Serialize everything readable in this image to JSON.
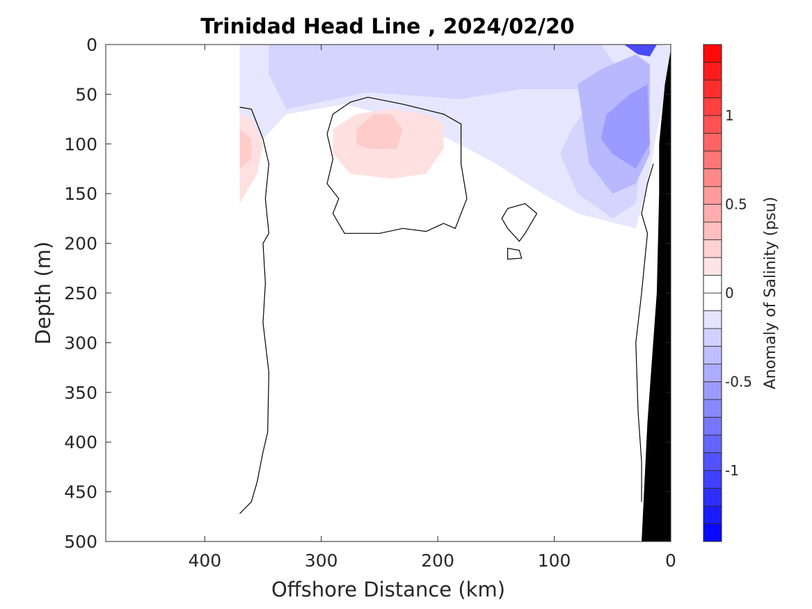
{
  "chart_data": {
    "type": "heatmap",
    "title": "Trinidad Head Line , 2024/02/20",
    "xlabel": "Offshore Distance (km)",
    "ylabel": "Depth (m)",
    "xlim": [
      485,
      0
    ],
    "ylim": [
      0,
      500
    ],
    "x_reversed": true,
    "y_reversed": true,
    "x_ticks": [
      400,
      300,
      200,
      100,
      0
    ],
    "y_ticks": [
      0,
      50,
      100,
      150,
      200,
      250,
      300,
      350,
      400,
      450,
      500
    ],
    "colorbar": {
      "label": "Anomaly of Salinity (psu)",
      "range": [
        -1.4,
        1.4
      ],
      "step": 0.1,
      "ticks": [
        -1,
        -0.5,
        0,
        0.5,
        1
      ],
      "tick_labels": [
        "-1",
        "-0.5",
        "0",
        "0.5",
        "1"
      ],
      "low_color": "#0000ff",
      "zero_color": "#ffffff",
      "high_color": "#ff0000"
    },
    "contour_level": 0,
    "regions": [
      {
        "name": "surface-fresh-band",
        "anomaly": -0.1,
        "color": "#e6e6ff",
        "polygon": [
          [
            370,
            0
          ],
          [
            12,
            0
          ],
          [
            0,
            2
          ],
          [
            5,
            45
          ],
          [
            20,
            140
          ],
          [
            30,
            185
          ],
          [
            80,
            170
          ],
          [
            110,
            150
          ],
          [
            150,
            120
          ],
          [
            190,
            95
          ],
          [
            230,
            75
          ],
          [
            280,
            60
          ],
          [
            330,
            70
          ],
          [
            350,
            95
          ],
          [
            370,
            95
          ]
        ]
      },
      {
        "name": "surface-fresh-core",
        "anomaly": -0.2,
        "color": "#d4d4ff",
        "polygon": [
          [
            345,
            0
          ],
          [
            60,
            0
          ],
          [
            45,
            25
          ],
          [
            70,
            60
          ],
          [
            85,
            85
          ],
          [
            95,
            110
          ],
          [
            80,
            150
          ],
          [
            50,
            175
          ],
          [
            30,
            160
          ],
          [
            25,
            110
          ],
          [
            40,
            70
          ],
          [
            80,
            45
          ],
          [
            130,
            45
          ],
          [
            180,
            55
          ],
          [
            260,
            48
          ],
          [
            330,
            65
          ],
          [
            345,
            30
          ]
        ]
      },
      {
        "name": "nearshore-fresh-lens",
        "anomaly": -0.35,
        "color": "#b8b8ff",
        "polygon": [
          [
            80,
            40
          ],
          [
            60,
            25
          ],
          [
            30,
            10
          ],
          [
            18,
            20
          ],
          [
            18,
            110
          ],
          [
            30,
            140
          ],
          [
            50,
            150
          ],
          [
            70,
            120
          ],
          [
            75,
            80
          ]
        ]
      },
      {
        "name": "nearshore-fresh-core",
        "anomaly": -0.5,
        "color": "#9b9bff",
        "polygon": [
          [
            55,
            70
          ],
          [
            35,
            50
          ],
          [
            20,
            40
          ],
          [
            18,
            100
          ],
          [
            30,
            125
          ],
          [
            50,
            110
          ],
          [
            60,
            95
          ]
        ]
      },
      {
        "name": "coastal-surface-minimum",
        "anomaly": -1.2,
        "color": "#4a4aff",
        "polygon": [
          [
            40,
            0
          ],
          [
            12,
            0
          ],
          [
            18,
            12
          ],
          [
            28,
            10
          ]
        ]
      },
      {
        "name": "subsurface-salty-eddy",
        "anomaly": 0.2,
        "color": "#ffe0e0",
        "polygon": [
          [
            290,
            85
          ],
          [
            270,
            70
          ],
          [
            240,
            65
          ],
          [
            210,
            70
          ],
          [
            195,
            80
          ],
          [
            195,
            105
          ],
          [
            210,
            130
          ],
          [
            240,
            135
          ],
          [
            275,
            130
          ],
          [
            290,
            110
          ]
        ]
      },
      {
        "name": "subsurface-salty-eddy-core",
        "anomaly": 0.3,
        "color": "#ffcccc",
        "polygon": [
          [
            270,
            85
          ],
          [
            255,
            70
          ],
          [
            240,
            70
          ],
          [
            230,
            85
          ],
          [
            235,
            105
          ],
          [
            260,
            105
          ],
          [
            270,
            100
          ]
        ]
      },
      {
        "name": "offshore-salty-patch",
        "anomaly": 0.2,
        "color": "#ffe0e0",
        "polygon": [
          [
            370,
            70
          ],
          [
            360,
            75
          ],
          [
            350,
            100
          ],
          [
            355,
            130
          ],
          [
            370,
            160
          ]
        ]
      },
      {
        "name": "offshore-salty-core",
        "anomaly": 0.3,
        "color": "#ffcccc",
        "polygon": [
          [
            370,
            85
          ],
          [
            360,
            95
          ],
          [
            360,
            115
          ],
          [
            370,
            125
          ]
        ]
      }
    ],
    "contours": [
      {
        "name": "offshore-zero-contour",
        "level": 0,
        "points": [
          [
            370,
            63
          ],
          [
            360,
            65
          ],
          [
            350,
            95
          ],
          [
            345,
            120
          ],
          [
            348,
            155
          ],
          [
            345,
            190
          ],
          [
            350,
            200
          ],
          [
            348,
            240
          ],
          [
            350,
            280
          ],
          [
            345,
            330
          ],
          [
            346,
            390
          ],
          [
            350,
            410
          ],
          [
            355,
            440
          ],
          [
            360,
            460
          ],
          [
            370,
            472
          ]
        ]
      },
      {
        "name": "eddy-zero-contour",
        "level": 0,
        "points": [
          [
            295,
            90
          ],
          [
            290,
            115
          ],
          [
            295,
            140
          ],
          [
            285,
            155
          ],
          [
            290,
            170
          ],
          [
            280,
            190
          ],
          [
            250,
            190
          ],
          [
            230,
            185
          ],
          [
            210,
            188
          ],
          [
            195,
            180
          ],
          [
            185,
            185
          ],
          [
            175,
            155
          ],
          [
            180,
            120
          ],
          [
            180,
            80
          ],
          [
            195,
            70
          ],
          [
            230,
            60
          ],
          [
            260,
            53
          ],
          [
            275,
            58
          ],
          [
            290,
            70
          ]
        ],
        "closed": true
      },
      {
        "name": "small-eddy-contour-a",
        "level": 0,
        "points": [
          [
            140,
            165
          ],
          [
            125,
            160
          ],
          [
            115,
            170
          ],
          [
            125,
            190
          ],
          [
            130,
            198
          ],
          [
            140,
            185
          ],
          [
            145,
            175
          ]
        ],
        "closed": true
      },
      {
        "name": "small-eddy-contour-b",
        "level": 0,
        "points": [
          [
            140,
            205
          ],
          [
            130,
            207
          ],
          [
            128,
            215
          ],
          [
            140,
            216
          ]
        ],
        "closed": true
      },
      {
        "name": "nearshore-zero-contour",
        "level": 0,
        "points": [
          [
            15,
            120
          ],
          [
            20,
            140
          ],
          [
            25,
            170
          ],
          [
            20,
            190
          ],
          [
            25,
            250
          ],
          [
            30,
            300
          ],
          [
            28,
            370
          ],
          [
            25,
            420
          ],
          [
            25,
            460
          ]
        ]
      }
    ],
    "seafloor": {
      "name": "continental-slope",
      "color": "#000000",
      "polygon": [
        [
          0,
          0
        ],
        [
          0,
          500
        ],
        [
          25,
          500
        ],
        [
          20,
          380
        ],
        [
          12,
          250
        ],
        [
          10,
          150
        ],
        [
          10,
          100
        ],
        [
          5,
          40
        ],
        [
          0,
          5
        ]
      ]
    }
  }
}
